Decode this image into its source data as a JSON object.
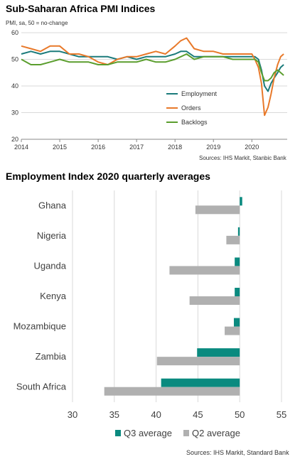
{
  "chart_data": [
    {
      "type": "line",
      "title": "Sub-Saharan Africa PMI Indices",
      "subtitle": "PMI, sa, 50 = no-change",
      "source": "Sources: IHS Markit, Stanbic Bank",
      "xlim": [
        2014,
        2020.92
      ],
      "ylim": [
        20,
        60
      ],
      "x_ticks": [
        2014,
        2015,
        2016,
        2017,
        2018,
        2019,
        2020
      ],
      "y_ticks": [
        20,
        30,
        40,
        50,
        60
      ],
      "grid": "horizontal",
      "legend_position": "lower-right inside",
      "series": [
        {
          "name": "Employment",
          "color": "#1b7b7b",
          "x": [
            2014.0,
            2014.25,
            2014.5,
            2014.75,
            2015.0,
            2015.25,
            2015.5,
            2015.75,
            2016.0,
            2016.25,
            2016.5,
            2016.75,
            2017.0,
            2017.25,
            2017.5,
            2017.75,
            2018.0,
            2018.15,
            2018.3,
            2018.5,
            2018.75,
            2019.0,
            2019.25,
            2019.5,
            2019.75,
            2020.0,
            2020.08,
            2020.17,
            2020.25,
            2020.33,
            2020.42,
            2020.5,
            2020.58,
            2020.67,
            2020.75,
            2020.83
          ],
          "values": [
            52,
            53,
            52,
            53,
            53,
            52,
            51,
            51,
            51,
            51,
            50,
            51,
            50,
            51,
            51,
            51,
            52,
            53,
            53,
            51,
            51,
            51,
            51,
            51,
            51,
            51,
            51,
            50,
            46,
            40,
            38,
            41,
            43,
            45,
            47,
            48
          ]
        },
        {
          "name": "Orders",
          "color": "#e8792a",
          "x": [
            2014.0,
            2014.25,
            2014.5,
            2014.75,
            2015.0,
            2015.25,
            2015.5,
            2015.75,
            2016.0,
            2016.25,
            2016.5,
            2016.75,
            2017.0,
            2017.25,
            2017.5,
            2017.75,
            2018.0,
            2018.15,
            2018.3,
            2018.5,
            2018.75,
            2019.0,
            2019.25,
            2019.5,
            2019.75,
            2020.0,
            2020.08,
            2020.17,
            2020.25,
            2020.33,
            2020.42,
            2020.5,
            2020.58,
            2020.67,
            2020.75,
            2020.83
          ],
          "values": [
            55,
            54,
            53,
            55,
            55,
            52,
            52,
            51,
            49,
            48,
            50,
            51,
            51,
            52,
            53,
            52,
            55,
            57,
            58,
            54,
            53,
            53,
            52,
            52,
            52,
            52,
            50,
            47,
            41,
            29,
            32,
            37,
            43,
            48,
            51,
            52
          ]
        },
        {
          "name": "Backlogs",
          "color": "#5b9e2e",
          "x": [
            2014.0,
            2014.25,
            2014.5,
            2014.75,
            2015.0,
            2015.25,
            2015.5,
            2015.75,
            2016.0,
            2016.25,
            2016.5,
            2016.75,
            2017.0,
            2017.25,
            2017.5,
            2017.75,
            2018.0,
            2018.15,
            2018.3,
            2018.5,
            2018.75,
            2019.0,
            2019.25,
            2019.5,
            2019.75,
            2020.0,
            2020.08,
            2020.17,
            2020.25,
            2020.33,
            2020.42,
            2020.5,
            2020.58,
            2020.67,
            2020.75,
            2020.83
          ],
          "values": [
            50,
            48,
            48,
            49,
            50,
            49,
            49,
            49,
            48,
            48,
            49,
            49,
            49,
            50,
            49,
            49,
            50,
            51,
            52,
            50,
            51,
            51,
            51,
            50,
            50,
            50,
            50,
            49,
            45,
            42,
            42,
            43,
            45,
            46,
            45,
            44
          ]
        }
      ]
    },
    {
      "type": "bar",
      "orientation": "horizontal",
      "title": "Employment Index 2020 quarterly averages",
      "source": "Sources: IHS Markit, Standard Bank",
      "baseline": 50,
      "xlim": [
        30,
        55
      ],
      "x_ticks": [
        30,
        35,
        40,
        45,
        50,
        55
      ],
      "grid": "vertical",
      "legend_position": "bottom",
      "categories": [
        "Ghana",
        "Nigeria",
        "Uganda",
        "Kenya",
        "Mozambique",
        "Zambia",
        "South Africa"
      ],
      "series": [
        {
          "name": "Q3 average",
          "color": "#0a8a7f",
          "values": [
            50.3,
            49.8,
            49.4,
            49.4,
            49.3,
            44.9,
            40.6
          ]
        },
        {
          "name": "Q2 average",
          "color": "#b0b0b0",
          "values": [
            44.7,
            48.4,
            41.6,
            44.0,
            48.2,
            40.1,
            33.8
          ]
        }
      ]
    }
  ]
}
